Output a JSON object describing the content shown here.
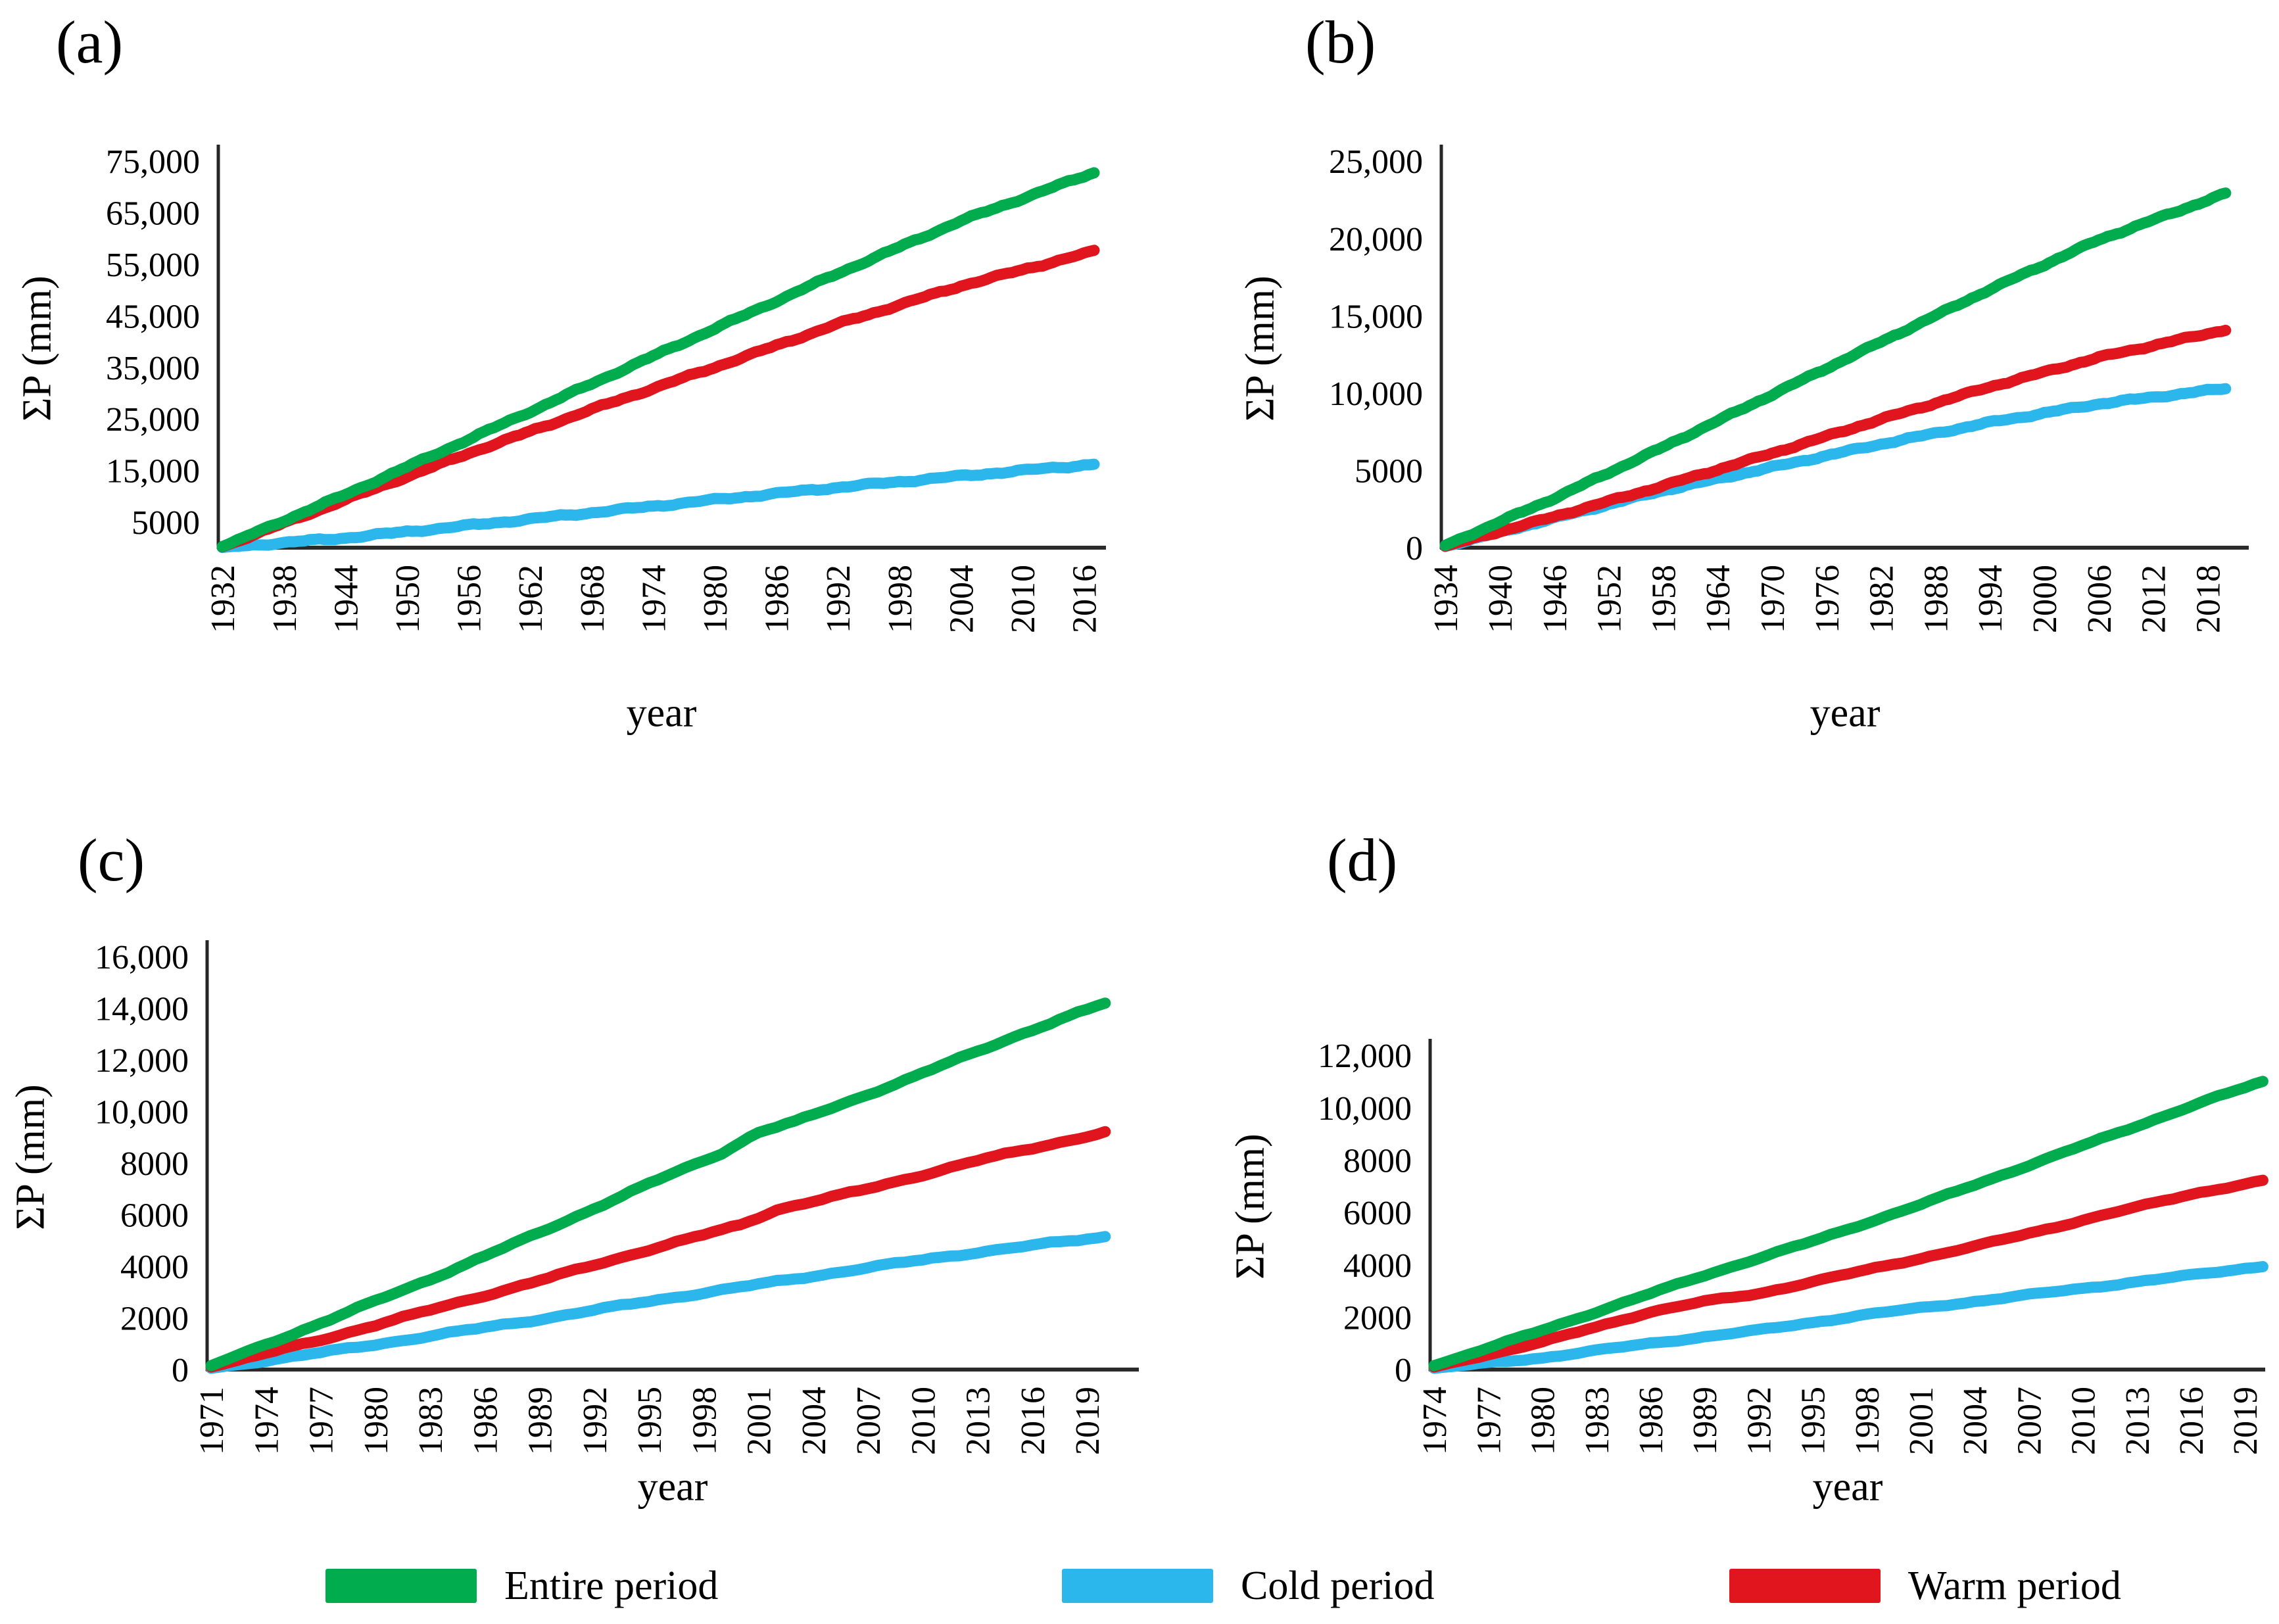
{
  "figure": {
    "background": "#ffffff"
  },
  "legend": {
    "items": [
      {
        "label": "Entire period",
        "color": "#00AC4E"
      },
      {
        "label": "Cold period",
        "color": "#2BB6EC"
      },
      {
        "label": "Warm period",
        "color": "#E0151E"
      }
    ]
  },
  "chart_data": [
    {
      "id": "a",
      "panel_label": "(a)",
      "type": "line",
      "xlabel": "year",
      "ylabel": "ΣP (mm)",
      "x_range": [
        1932,
        2017
      ],
      "x_ticks": [
        1932,
        1938,
        1944,
        1950,
        1956,
        1962,
        1968,
        1974,
        1980,
        1986,
        1992,
        1998,
        2004,
        2010,
        2016
      ],
      "y_ticks": [
        {
          "v": 5000,
          "t": "5000"
        },
        {
          "v": 15000,
          "t": "15,000"
        },
        {
          "v": 25000,
          "t": "25,000"
        },
        {
          "v": 35000,
          "t": "35,000"
        },
        {
          "v": 45000,
          "t": "45,000"
        },
        {
          "v": 55000,
          "t": "55,000"
        },
        {
          "v": 65000,
          "t": "65,000"
        },
        {
          "v": 75000,
          "t": "75,000"
        }
      ],
      "grid": false,
      "series": [
        {
          "name": "Entire period",
          "color": "#00AC4E",
          "points": [
            [
              1932,
              200
            ],
            [
              1944,
              10300
            ],
            [
              1956,
              21000
            ],
            [
              1968,
              31800
            ],
            [
              1980,
              42500
            ],
            [
              1992,
              53200
            ],
            [
              2004,
              63400
            ],
            [
              2017,
              72800
            ]
          ]
        },
        {
          "name": "Cold period",
          "color": "#2BB6EC",
          "points": [
            [
              1932,
              50
            ],
            [
              1944,
              1900
            ],
            [
              1956,
              4300
            ],
            [
              1968,
              6800
            ],
            [
              1980,
              9300
            ],
            [
              1992,
              11700
            ],
            [
              2004,
              13900
            ],
            [
              2017,
              16200
            ]
          ]
        },
        {
          "name": "Warm period",
          "color": "#E0151E",
          "points": [
            [
              1932,
              150
            ],
            [
              1944,
              9300
            ],
            [
              1956,
              18300
            ],
            [
              1968,
              26800
            ],
            [
              1980,
              35000
            ],
            [
              1992,
              43400
            ],
            [
              2004,
              50800
            ],
            [
              2017,
              57500
            ]
          ]
        }
      ]
    },
    {
      "id": "b",
      "panel_label": "(b)",
      "type": "line",
      "xlabel": "year",
      "ylabel": "ΣP (mm)",
      "x_range": [
        1934,
        2020
      ],
      "x_ticks": [
        1934,
        1940,
        1946,
        1952,
        1958,
        1964,
        1970,
        1976,
        1982,
        1988,
        1994,
        2000,
        2006,
        2012,
        2018
      ],
      "y_ticks": [
        {
          "v": 0,
          "t": "0"
        },
        {
          "v": 5000,
          "t": "5000"
        },
        {
          "v": 10000,
          "t": "10,000"
        },
        {
          "v": 15000,
          "t": "15,000"
        },
        {
          "v": 20000,
          "t": "20,000"
        },
        {
          "v": 25000,
          "t": "25,000"
        }
      ],
      "grid": false,
      "series": [
        {
          "name": "Entire period",
          "color": "#00AC4E",
          "points": [
            [
              1934,
              150
            ],
            [
              1946,
              3200
            ],
            [
              1958,
              6500
            ],
            [
              1970,
              9900
            ],
            [
              1982,
              13300
            ],
            [
              1994,
              16700
            ],
            [
              2006,
              19900
            ],
            [
              2020,
              22900
            ]
          ]
        },
        {
          "name": "Cold period",
          "color": "#2BB6EC",
          "points": [
            [
              1934,
              80
            ],
            [
              1940,
              1000
            ],
            [
              1946,
              1900
            ],
            [
              1952,
              2800
            ],
            [
              1958,
              3700
            ],
            [
              1970,
              5200
            ],
            [
              1982,
              6700
            ],
            [
              1994,
              8100
            ],
            [
              2006,
              9300
            ],
            [
              2020,
              10300
            ]
          ]
        },
        {
          "name": "Warm period",
          "color": "#E0151E",
          "points": [
            [
              1934,
              100
            ],
            [
              1946,
              2000
            ],
            [
              1958,
              4000
            ],
            [
              1970,
              6100
            ],
            [
              1982,
              8300
            ],
            [
              1994,
              10400
            ],
            [
              2006,
              12300
            ],
            [
              2020,
              14100
            ]
          ]
        }
      ]
    },
    {
      "id": "c",
      "panel_label": "(c)",
      "type": "line",
      "xlabel": "year",
      "ylabel": "ΣP (mm)",
      "x_range": [
        1971,
        2020
      ],
      "x_ticks": [
        1971,
        1974,
        1977,
        1980,
        1983,
        1986,
        1989,
        1992,
        1995,
        1998,
        2001,
        2004,
        2007,
        2010,
        2013,
        2016,
        2019
      ],
      "y_ticks": [
        {
          "v": 0,
          "t": "0"
        },
        {
          "v": 2000,
          "t": "2000"
        },
        {
          "v": 4000,
          "t": "4000"
        },
        {
          "v": 6000,
          "t": "6000"
        },
        {
          "v": 8000,
          "t": "8000"
        },
        {
          "v": 10000,
          "t": "10,000"
        },
        {
          "v": 12000,
          "t": "12,000"
        },
        {
          "v": 14000,
          "t": "14,000"
        },
        {
          "v": 16000,
          "t": "16,000"
        }
      ],
      "grid": false,
      "series": [
        {
          "name": "Entire period",
          "color": "#00AC4E",
          "points": [
            [
              1971,
              150
            ],
            [
              1977,
              1800
            ],
            [
              1983,
              3500
            ],
            [
              1989,
              5300
            ],
            [
              1995,
              7200
            ],
            [
              1999,
              8400
            ],
            [
              2001,
              9200
            ],
            [
              2003,
              9600
            ],
            [
              2009,
              11200
            ],
            [
              2015,
              12900
            ],
            [
              2020,
              14200
            ]
          ]
        },
        {
          "name": "Cold period",
          "color": "#2BB6EC",
          "points": [
            [
              1971,
              50
            ],
            [
              1977,
              650
            ],
            [
              1983,
              1300
            ],
            [
              1989,
              1950
            ],
            [
              1995,
              2650
            ],
            [
              2001,
              3300
            ],
            [
              2007,
              3950
            ],
            [
              2013,
              4550
            ],
            [
              2020,
              5150
            ]
          ]
        },
        {
          "name": "Warm period",
          "color": "#E0151E",
          "points": [
            [
              1971,
              100
            ],
            [
              1977,
              1150
            ],
            [
              1983,
              2300
            ],
            [
              1989,
              3450
            ],
            [
              1995,
              4650
            ],
            [
              2000,
              5600
            ],
            [
              2002,
              6200
            ],
            [
              2007,
              7000
            ],
            [
              2013,
              8100
            ],
            [
              2020,
              9200
            ]
          ]
        }
      ]
    },
    {
      "id": "d",
      "panel_label": "(d)",
      "type": "line",
      "xlabel": "year",
      "ylabel": "ΣP (mm)",
      "x_range": [
        1974,
        2020
      ],
      "x_ticks": [
        1974,
        1977,
        1980,
        1983,
        1986,
        1989,
        1992,
        1995,
        1998,
        2001,
        2004,
        2007,
        2010,
        2013,
        2016,
        2019
      ],
      "y_ticks": [
        {
          "v": 0,
          "t": "0"
        },
        {
          "v": 2000,
          "t": "2000"
        },
        {
          "v": 4000,
          "t": "4000"
        },
        {
          "v": 6000,
          "t": "6000"
        },
        {
          "v": 8000,
          "t": "8000"
        },
        {
          "v": 10000,
          "t": "10,000"
        },
        {
          "v": 12000,
          "t": "12,000"
        }
      ],
      "grid": false,
      "series": [
        {
          "name": "Entire period",
          "color": "#00AC4E",
          "points": [
            [
              1974,
              150
            ],
            [
              1980,
              1500
            ],
            [
              1986,
              2900
            ],
            [
              1989,
              3600
            ],
            [
              1995,
              4900
            ],
            [
              2001,
              6300
            ],
            [
              2007,
              7800
            ],
            [
              2013,
              9300
            ],
            [
              2017,
              10300
            ],
            [
              2020,
              11000
            ]
          ]
        },
        {
          "name": "Cold period",
          "color": "#2BB6EC",
          "points": [
            [
              1974,
              50
            ],
            [
              1980,
              450
            ],
            [
              1986,
              1000
            ],
            [
              1992,
              1500
            ],
            [
              1998,
              2100
            ],
            [
              2004,
              2600
            ],
            [
              2010,
              3100
            ],
            [
              2016,
              3600
            ],
            [
              2020,
              3950
            ]
          ]
        },
        {
          "name": "Warm period",
          "color": "#E0151E",
          "points": [
            [
              1974,
              100
            ],
            [
              1980,
              1050
            ],
            [
              1986,
              2200
            ],
            [
              1989,
              2600
            ],
            [
              1992,
              2900
            ],
            [
              1998,
              3800
            ],
            [
              2004,
              4700
            ],
            [
              2010,
              5700
            ],
            [
              2016,
              6700
            ],
            [
              2020,
              7200
            ]
          ]
        }
      ]
    }
  ]
}
